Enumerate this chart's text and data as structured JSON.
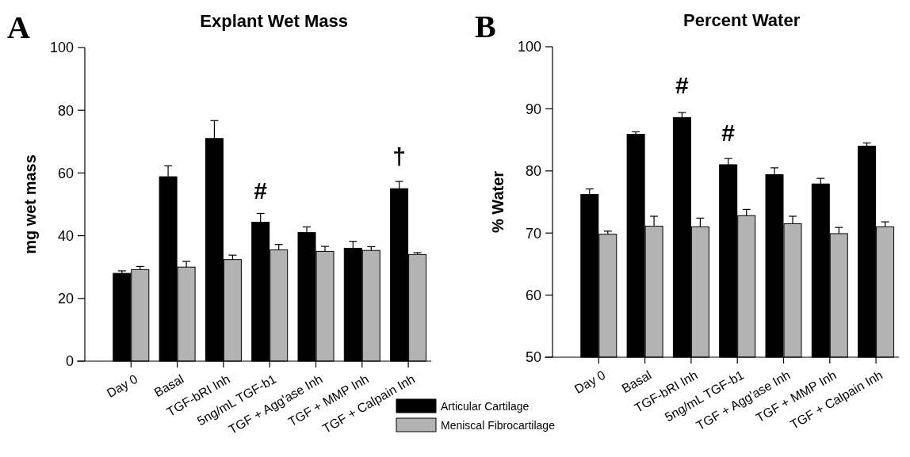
{
  "chart_data": [
    {
      "type": "bar",
      "title": "Explant Wet Mass",
      "ylabel": "mg wet mass",
      "annotations": [
        "A",
        {
          "text": "#",
          "x": "5ng/mL TGF-b1",
          "y": 44.3
        },
        {
          "text": "†",
          "x": "TGF + Calpain Inh",
          "y": 55
        }
      ],
      "categories": [
        "Day 0",
        "Basal",
        "TGF-bRI Inh",
        "5ng/mL TGF-b1",
        "TGF + Agg'ase Inh",
        "TGF + MMP Inh",
        "TGF + Calpain Inh"
      ],
      "series": [
        {
          "color": "#000000",
          "values": [
            28,
            58.8,
            71,
            44.3,
            41,
            36,
            55
          ],
          "errors": [
            0.8,
            3.5,
            5.7,
            2.8,
            1.8,
            2.2,
            2.3
          ]
        },
        {
          "color": "#b3b3b3",
          "values": [
            29.2,
            30,
            32.4,
            35.5,
            35,
            35.3,
            34
          ],
          "errors": [
            1,
            1.8,
            1.4,
            1.7,
            1.6,
            1.2,
            0.6
          ]
        }
      ],
      "ylim": [
        0,
        100
      ],
      "yticks": [
        0,
        20,
        40,
        60,
        80,
        100
      ],
      "grid": false,
      "legend": false
    },
    {
      "type": "bar",
      "title": "Percent Water",
      "ylabel": "% Water",
      "annotations": [
        "B",
        {
          "text": "#",
          "x": "TGF-bRI Inh",
          "y": 88.6
        },
        {
          "text": "#",
          "x": "5ng/mL TGF-b1",
          "y": 81
        }
      ],
      "categories": [
        "Day 0",
        "Basal",
        "TGF-bRI Inh",
        "5ng/mL TGF-b1",
        "TGF + Agg'ase Inh",
        "TGF + MMP Inh",
        "TGF + Calpain Inh"
      ],
      "series": [
        {
          "name": "Articular Cartilage",
          "color": "#000000",
          "values": [
            76.2,
            85.9,
            88.6,
            81,
            79.4,
            77.9,
            84
          ],
          "errors": [
            0.9,
            0.4,
            0.8,
            1,
            1.1,
            0.9,
            0.5
          ]
        },
        {
          "name": "Meniscal Fibrocartilage",
          "color": "#b3b3b3",
          "values": [
            69.8,
            71.1,
            71,
            72.8,
            71.5,
            69.9,
            71
          ],
          "errors": [
            0.5,
            1.6,
            1.4,
            1,
            1.2,
            1,
            0.8
          ]
        }
      ],
      "ylim": [
        50,
        100
      ],
      "yticks": [
        50,
        60,
        70,
        80,
        90,
        100
      ],
      "grid": false,
      "legend": "bottom left"
    }
  ]
}
